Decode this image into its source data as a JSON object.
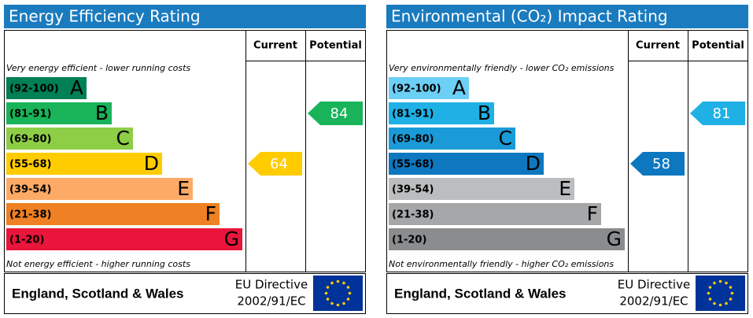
{
  "chart_data": [
    {
      "type": "epc",
      "title": "Energy Efficiency Rating",
      "columns": [
        "Current",
        "Potential"
      ],
      "top_note": "Very energy efficient - lower running costs",
      "bottom_note": "Not energy efficient - higher running costs",
      "bands": [
        {
          "range": "(92-100)",
          "letter": "A",
          "color": "#008054"
        },
        {
          "range": "(81-91)",
          "letter": "B",
          "color": "#19b459"
        },
        {
          "range": "(69-80)",
          "letter": "C",
          "color": "#8dce46"
        },
        {
          "range": "(55-68)",
          "letter": "D",
          "color": "#ffcc00"
        },
        {
          "range": "(39-54)",
          "letter": "E",
          "color": "#fcaa65"
        },
        {
          "range": "(21-38)",
          "letter": "F",
          "color": "#ef8023"
        },
        {
          "range": "(1-20)",
          "letter": "G",
          "color": "#e9153b"
        }
      ],
      "current": 64,
      "potential": 84,
      "region": "England, Scotland & Wales",
      "directive": [
        "EU Directive",
        "2002/91/EC"
      ]
    },
    {
      "type": "epc",
      "title": "Environmental (CO₂) Impact Rating",
      "columns": [
        "Current",
        "Potential"
      ],
      "top_note": "Very environmentally friendly - lower CO₂ emissions",
      "bottom_note": "Not environmentally friendly - higher CO₂ emissions",
      "bands": [
        {
          "range": "(92-100)",
          "letter": "A",
          "color": "#6ccff6"
        },
        {
          "range": "(81-91)",
          "letter": "B",
          "color": "#1fb1e6"
        },
        {
          "range": "(69-80)",
          "letter": "C",
          "color": "#1a9bd7"
        },
        {
          "range": "(55-68)",
          "letter": "D",
          "color": "#0d77c0"
        },
        {
          "range": "(39-54)",
          "letter": "E",
          "color": "#bbbdbf"
        },
        {
          "range": "(21-38)",
          "letter": "F",
          "color": "#a5a7a9"
        },
        {
          "range": "(1-20)",
          "letter": "G",
          "color": "#8a8c8e"
        }
      ],
      "current": 58,
      "potential": 81,
      "region": "England, Scotland & Wales",
      "directive": [
        "EU Directive",
        "2002/91/EC"
      ]
    }
  ]
}
